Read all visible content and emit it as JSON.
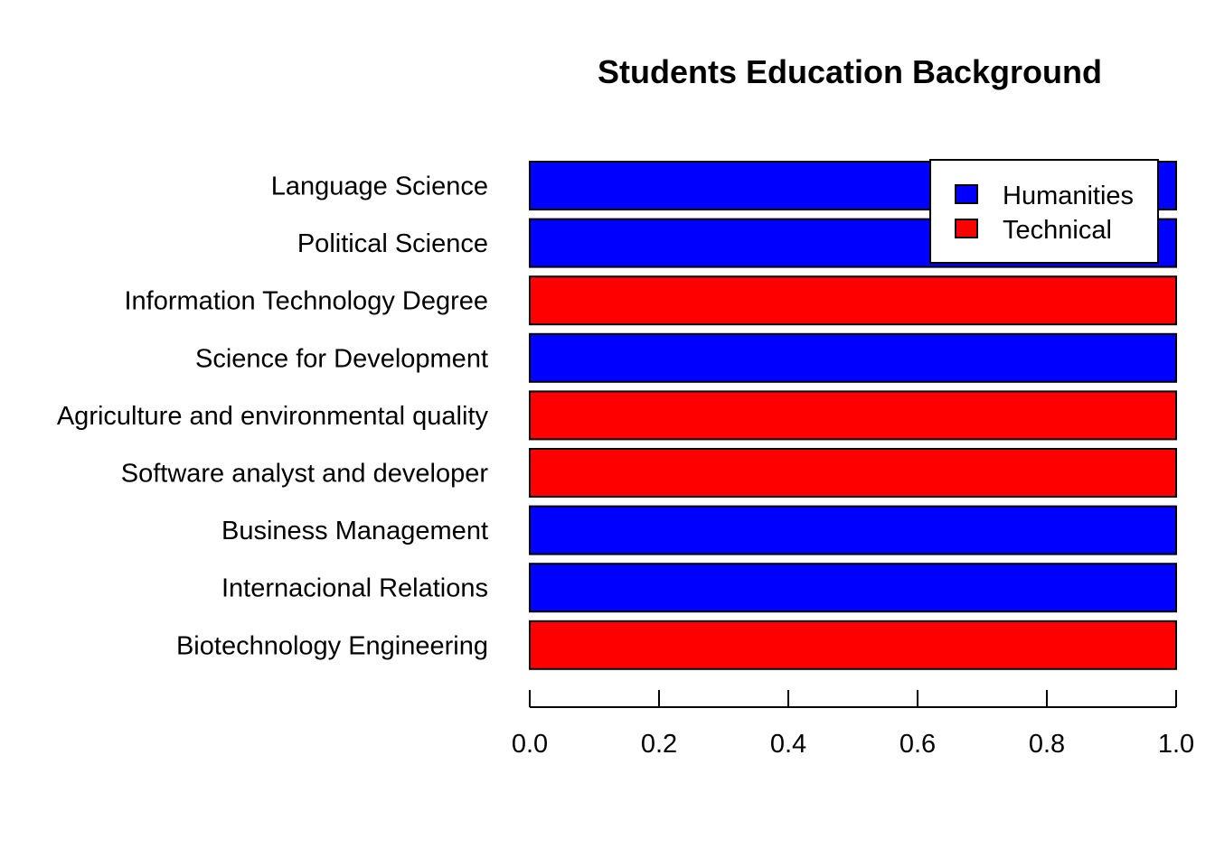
{
  "chart_data": {
    "type": "bar",
    "orientation": "horizontal",
    "title": "Students Education Background",
    "xlabel": "",
    "ylabel": "",
    "xlim": [
      0,
      1
    ],
    "x_ticks": [
      "0.0",
      "0.2",
      "0.4",
      "0.6",
      "0.8",
      "1.0"
    ],
    "grid": false,
    "legend_position": "top-right",
    "categories": [
      "Language Science",
      "Political Science",
      "Information Technology Degree",
      "Science for Development",
      "Agriculture and environmental quality",
      "Software analyst and developer",
      "Business Management",
      "Internacional Relations",
      "Biotechnology Engineering"
    ],
    "values": [
      1,
      1,
      1,
      1,
      1,
      1,
      1,
      1,
      1
    ],
    "groups": [
      "Humanities",
      "Humanities",
      "Technical",
      "Humanities",
      "Technical",
      "Technical",
      "Humanities",
      "Humanities",
      "Technical"
    ],
    "legend": [
      {
        "label": "Humanities",
        "color": "#0000ff"
      },
      {
        "label": "Technical",
        "color": "#ff0000"
      }
    ]
  }
}
